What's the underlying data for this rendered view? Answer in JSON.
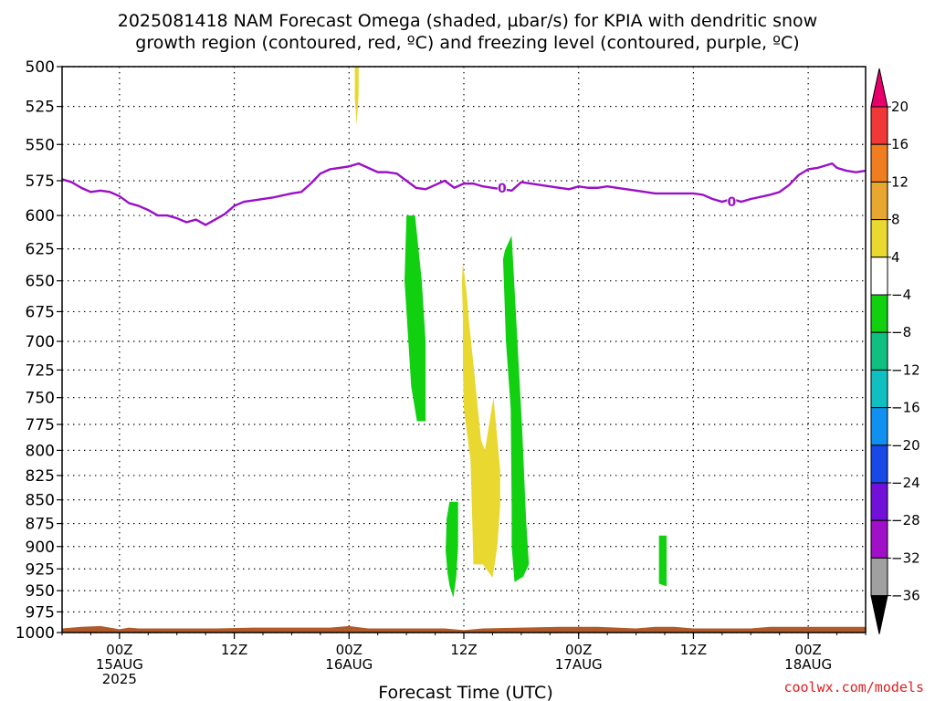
{
  "chart_data": {
    "type": "area",
    "title_lines": [
      "2025081418 NAM Forecast Omega (shaded, µbar/s) for KPIA with dendritic snow",
      "growth region (contoured, red, ºC) and freezing level (contoured, purple, ºC)"
    ],
    "xlabel": "Forecast Time (UTC)",
    "ylabel": "",
    "credit": "coolwx.com/models",
    "x_unit": "hours since 2025-08-14 18Z",
    "xlim": [
      0,
      84
    ],
    "ylim": [
      1000,
      500
    ],
    "y_scale": "log-pressure",
    "grid": true,
    "y_ticks": [
      500,
      525,
      550,
      575,
      600,
      625,
      650,
      675,
      700,
      725,
      750,
      775,
      800,
      825,
      850,
      875,
      900,
      925,
      950,
      975,
      1000
    ],
    "x_ticks": [
      {
        "x": 6,
        "lines": [
          "00Z",
          "15AUG",
          "2025"
        ]
      },
      {
        "x": 18,
        "lines": [
          "12Z"
        ]
      },
      {
        "x": 30,
        "lines": [
          "00Z",
          "16AUG"
        ]
      },
      {
        "x": 42,
        "lines": [
          "12Z"
        ]
      },
      {
        "x": 54,
        "lines": [
          "00Z",
          "17AUG"
        ]
      },
      {
        "x": 66,
        "lines": [
          "12Z"
        ]
      },
      {
        "x": 78,
        "lines": [
          "00Z",
          "18AUG"
        ]
      }
    ],
    "colorbar": {
      "labels": [
        "20",
        "16",
        "12",
        "8",
        "4",
        "-4",
        "-8",
        "-12",
        "-16",
        "-20",
        "-24",
        "-28",
        "-32",
        "-36"
      ],
      "colors": [
        "#e8006a",
        "#f03838",
        "#f07e20",
        "#e8a830",
        "#e8d830",
        "#ffffff",
        "#10d010",
        "#10c080",
        "#10c0c0",
        "#1090f0",
        "#1848e8",
        "#7010d8",
        "#a010c8",
        "#a0a0a0",
        "#000000"
      ]
    },
    "freezing_level": {
      "color": "#9a10c8",
      "label": "0",
      "label_points": [
        {
          "x": 46,
          "p": 580
        },
        {
          "x": 70,
          "p": 590
        }
      ],
      "points": [
        [
          0,
          574
        ],
        [
          1,
          576
        ],
        [
          2,
          580
        ],
        [
          3,
          583
        ],
        [
          4,
          582
        ],
        [
          5,
          583
        ],
        [
          6,
          586
        ],
        [
          7,
          591
        ],
        [
          8,
          593
        ],
        [
          9,
          596
        ],
        [
          10,
          600
        ],
        [
          11,
          600
        ],
        [
          12,
          602
        ],
        [
          13,
          605
        ],
        [
          14,
          603
        ],
        [
          15,
          607
        ],
        [
          16,
          603
        ],
        [
          17,
          599
        ],
        [
          18,
          593
        ],
        [
          19,
          590
        ],
        [
          20,
          589
        ],
        [
          22,
          587
        ],
        [
          24,
          584
        ],
        [
          25,
          583
        ],
        [
          26,
          577
        ],
        [
          27,
          570
        ],
        [
          28,
          567
        ],
        [
          29,
          566
        ],
        [
          30,
          565
        ],
        [
          31,
          563
        ],
        [
          32,
          566
        ],
        [
          33,
          569
        ],
        [
          34,
          569
        ],
        [
          35,
          570
        ],
        [
          36,
          575
        ],
        [
          37,
          580
        ],
        [
          38,
          581
        ],
        [
          39,
          578
        ],
        [
          40,
          575
        ],
        [
          41,
          580
        ],
        [
          42,
          577
        ],
        [
          43,
          577
        ],
        [
          44,
          579
        ],
        [
          45,
          580
        ],
        [
          46,
          581
        ],
        [
          47,
          582
        ],
        [
          48,
          576
        ],
        [
          50,
          578
        ],
        [
          52,
          580
        ],
        [
          53,
          581
        ],
        [
          54,
          579
        ],
        [
          55,
          580
        ],
        [
          56,
          580
        ],
        [
          57,
          579
        ],
        [
          58,
          580
        ],
        [
          60,
          582
        ],
        [
          62,
          584
        ],
        [
          64,
          584
        ],
        [
          66,
          584
        ],
        [
          67,
          585
        ],
        [
          68,
          588
        ],
        [
          69,
          590
        ],
        [
          70,
          588
        ],
        [
          71,
          590
        ],
        [
          72,
          588
        ],
        [
          74,
          585
        ],
        [
          75,
          583
        ],
        [
          76,
          578
        ],
        [
          77,
          571
        ],
        [
          78,
          567
        ],
        [
          79,
          566
        ],
        [
          80,
          564
        ],
        [
          80.5,
          563
        ],
        [
          81,
          566
        ],
        [
          82,
          568
        ],
        [
          83,
          569
        ],
        [
          84,
          568
        ]
      ]
    },
    "omega_regions": [
      {
        "color": "#e8d830",
        "points": [
          [
            30.6,
            500
          ],
          [
            31.0,
            500
          ],
          [
            31.0,
            517
          ],
          [
            30.8,
            537
          ],
          [
            30.6,
            520
          ]
        ]
      },
      {
        "color": "#10d010",
        "points": [
          [
            36.0,
            600
          ],
          [
            36.9,
            600
          ],
          [
            37.6,
            650
          ],
          [
            38.0,
            700
          ],
          [
            38.0,
            772
          ],
          [
            37.1,
            772
          ],
          [
            36.5,
            740
          ],
          [
            35.8,
            650
          ]
        ]
      },
      {
        "color": "#e8d830",
        "points": [
          [
            41.9,
            636
          ],
          [
            42.3,
            660
          ],
          [
            42.5,
            680
          ],
          [
            43.0,
            720
          ],
          [
            43.8,
            790
          ],
          [
            44.2,
            800
          ],
          [
            45.1,
            750
          ],
          [
            45.8,
            820
          ],
          [
            45.8,
            855
          ],
          [
            45.5,
            900
          ],
          [
            45.0,
            935
          ],
          [
            44.0,
            920
          ],
          [
            43.0,
            920
          ],
          [
            42.9,
            880
          ],
          [
            42.7,
            810
          ],
          [
            42.0,
            760
          ],
          [
            41.9,
            720
          ],
          [
            41.9,
            680
          ],
          [
            41.8,
            650
          ]
        ]
      },
      {
        "color": "#10d010",
        "points": [
          [
            46.3,
            626
          ],
          [
            47.0,
            615
          ],
          [
            47.6,
            700
          ],
          [
            48.1,
            780
          ],
          [
            48.5,
            870
          ],
          [
            48.8,
            920
          ],
          [
            48.2,
            934
          ],
          [
            47.3,
            940
          ],
          [
            47.0,
            900
          ],
          [
            47.0,
            860
          ],
          [
            46.9,
            760
          ],
          [
            46.4,
            700
          ],
          [
            46.1,
            633
          ]
        ]
      },
      {
        "color": "#10d010",
        "points": [
          [
            40.5,
            852
          ],
          [
            41.4,
            852
          ],
          [
            41.4,
            900
          ],
          [
            41.2,
            935
          ],
          [
            40.9,
            958
          ],
          [
            40.5,
            944
          ],
          [
            40.3,
            930
          ],
          [
            40.1,
            905
          ],
          [
            40.2,
            870
          ]
        ]
      },
      {
        "color": "#10d010",
        "points": [
          [
            62.4,
            888
          ],
          [
            63.2,
            888
          ],
          [
            63.2,
            945
          ],
          [
            62.4,
            942
          ]
        ]
      }
    ],
    "terrain": {
      "color": "#b05a2a",
      "points": [
        [
          0,
          995
        ],
        [
          2,
          993
        ],
        [
          4,
          992
        ],
        [
          6,
          996
        ],
        [
          7,
          994
        ],
        [
          8,
          995
        ],
        [
          16,
          995
        ],
        [
          20,
          994
        ],
        [
          28,
          994
        ],
        [
          30,
          992
        ],
        [
          32,
          995
        ],
        [
          40,
          995
        ],
        [
          42,
          997
        ],
        [
          44,
          995
        ],
        [
          52,
          993
        ],
        [
          56,
          993
        ],
        [
          60,
          995
        ],
        [
          62,
          993
        ],
        [
          64,
          993
        ],
        [
          66,
          995
        ],
        [
          72,
          995
        ],
        [
          74,
          993
        ],
        [
          84,
          993
        ]
      ]
    }
  }
}
